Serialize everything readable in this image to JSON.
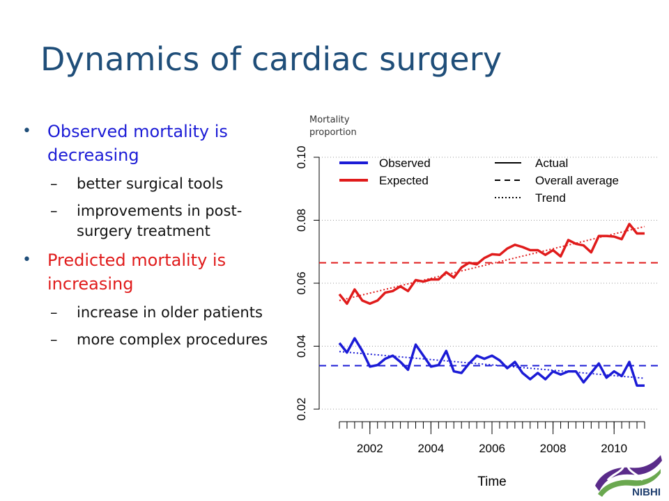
{
  "slide": {
    "title": "Dynamics of cardiac surgery",
    "bullets": [
      {
        "text": "Observed mortality is decreasing",
        "color": "#1b1bd6",
        "sub": [
          "better surgical tools",
          "improvements in post-surgery treatment"
        ]
      },
      {
        "text": "Predicted mortality is increasing",
        "color": "#e01b1b",
        "sub": [
          "increase in older patients",
          "more complex procedures"
        ]
      }
    ],
    "logo_text": "NIBHI"
  },
  "chart_data": {
    "type": "line",
    "title": "",
    "xlabel": "Time",
    "ylabel": "Mortality proportion",
    "xlim": [
      2001.0,
      2011.1
    ],
    "ylim": [
      0.02,
      0.1
    ],
    "xticks": [
      2002,
      2004,
      2006,
      2008,
      2010
    ],
    "yticks": [
      0.02,
      0.04,
      0.06,
      0.08,
      0.1
    ],
    "ytick_labels": [
      "0.02",
      "0.04",
      "0.06",
      "0.08",
      "0.10"
    ],
    "grid": true,
    "legend_placement": "top",
    "legend_color": [
      {
        "name": "Observed",
        "color": "#1b1bd6"
      },
      {
        "name": "Expected",
        "color": "#e01b1b"
      }
    ],
    "legend_style": [
      {
        "name": "Actual",
        "style": "solid"
      },
      {
        "name": "Overall average",
        "style": "dashed"
      },
      {
        "name": "Trend",
        "style": "dotted"
      }
    ],
    "x": [
      2001.0,
      2001.25,
      2001.5,
      2001.75,
      2002.0,
      2002.25,
      2002.5,
      2002.75,
      2003.0,
      2003.25,
      2003.5,
      2003.75,
      2004.0,
      2004.25,
      2004.5,
      2004.75,
      2005.0,
      2005.25,
      2005.5,
      2005.75,
      2006.0,
      2006.25,
      2006.5,
      2006.75,
      2007.0,
      2007.25,
      2007.5,
      2007.75,
      2008.0,
      2008.25,
      2008.5,
      2008.75,
      2009.0,
      2009.25,
      2009.5,
      2009.75,
      2010.0,
      2010.25,
      2010.5,
      2010.75,
      2011.0
    ],
    "series": [
      {
        "name": "Observed",
        "color": "#1b1bd6",
        "style": "solid",
        "values": [
          0.041,
          0.038,
          0.0425,
          0.0385,
          0.0335,
          0.034,
          0.036,
          0.037,
          0.035,
          0.0325,
          0.0405,
          0.037,
          0.0335,
          0.034,
          0.0385,
          0.032,
          0.0315,
          0.0345,
          0.037,
          0.036,
          0.037,
          0.0355,
          0.033,
          0.035,
          0.0315,
          0.0295,
          0.0315,
          0.0295,
          0.032,
          0.031,
          0.032,
          0.032,
          0.0285,
          0.0315,
          0.0345,
          0.03,
          0.032,
          0.0305,
          0.035,
          0.0275,
          0.0275
        ]
      },
      {
        "name": "Expected",
        "color": "#e01b1b",
        "style": "solid",
        "values": [
          0.0565,
          0.0535,
          0.058,
          0.0545,
          0.0535,
          0.0545,
          0.057,
          0.0575,
          0.059,
          0.0575,
          0.061,
          0.0605,
          0.0612,
          0.0612,
          0.0635,
          0.0618,
          0.065,
          0.0665,
          0.066,
          0.068,
          0.0692,
          0.069,
          0.071,
          0.0722,
          0.0715,
          0.0705,
          0.0705,
          0.069,
          0.0705,
          0.0685,
          0.0737,
          0.0725,
          0.072,
          0.0698,
          0.075,
          0.075,
          0.0748,
          0.074,
          0.0788,
          0.0758,
          0.0758
        ]
      }
    ],
    "averages": [
      {
        "name": "Observed",
        "value": 0.0338,
        "color": "#1b1bd6"
      },
      {
        "name": "Expected",
        "value": 0.0665,
        "color": "#e01b1b"
      }
    ],
    "trends": [
      {
        "name": "Observed",
        "from": [
          2001.0,
          0.0383
        ],
        "to": [
          2011.0,
          0.0298
        ],
        "color": "#1b1bd6"
      },
      {
        "name": "Expected",
        "from": [
          2001.0,
          0.0545
        ],
        "to": [
          2011.0,
          0.078
        ],
        "color": "#e01b1b"
      }
    ]
  }
}
